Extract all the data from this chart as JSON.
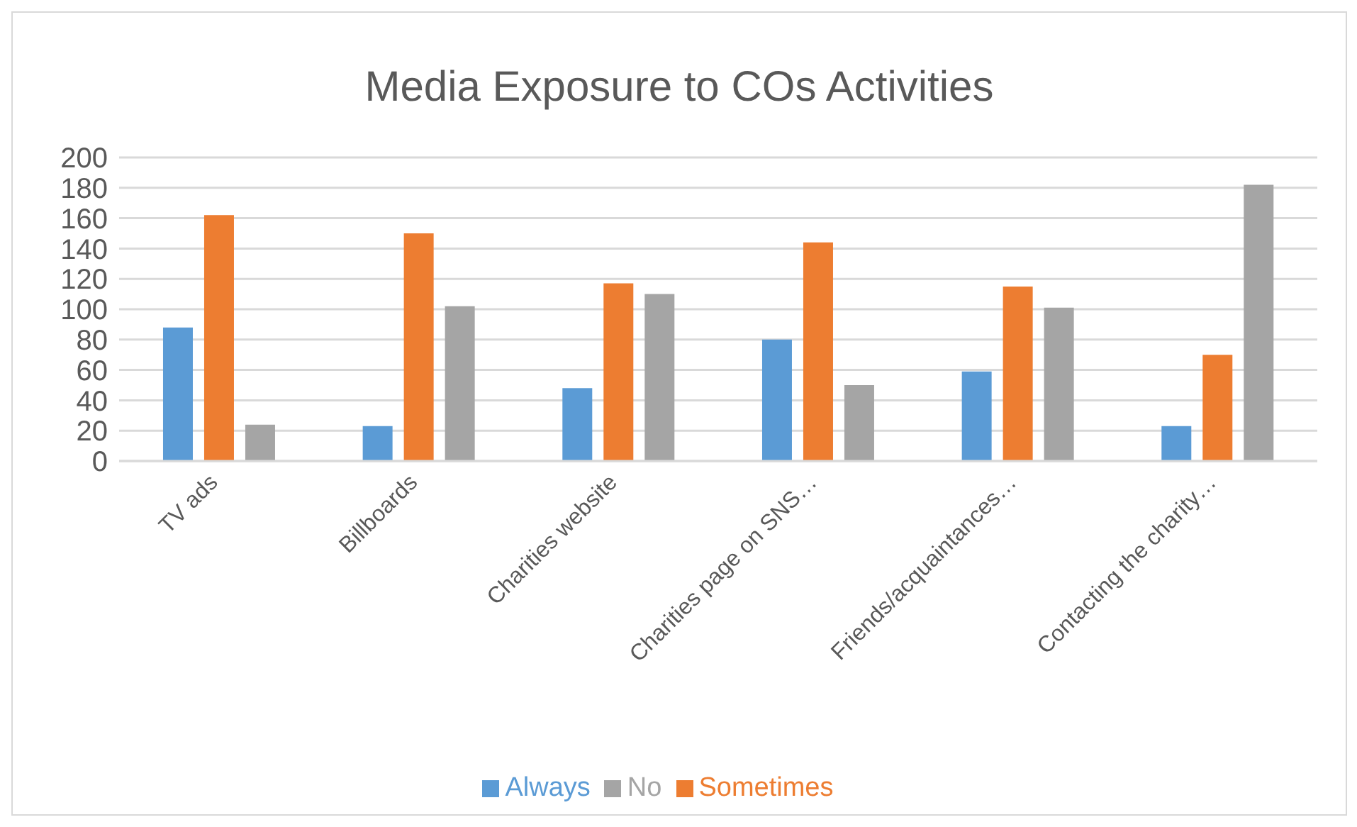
{
  "chart_data": {
    "type": "bar",
    "title": "Media Exposure to COs Activities",
    "categories": [
      "TV ads",
      "Billboards",
      "Charities website",
      "Charities page on SNS…",
      "Friends/acquaintances…",
      "Contacting the charity…"
    ],
    "series": [
      {
        "name": "Always",
        "color": "#5b9bd5",
        "values": [
          88,
          23,
          48,
          80,
          59,
          23
        ]
      },
      {
        "name": "Sometimes",
        "color": "#ed7d31",
        "values": [
          162,
          150,
          117,
          144,
          115,
          70
        ]
      },
      {
        "name": "No",
        "color": "#a5a5a5",
        "values": [
          24,
          102,
          110,
          50,
          101,
          182
        ]
      }
    ],
    "ylim": [
      0,
      200
    ],
    "yticks": [
      0,
      20,
      40,
      60,
      80,
      100,
      120,
      140,
      160,
      180,
      200
    ],
    "grid": "y",
    "legend": "bottom"
  }
}
